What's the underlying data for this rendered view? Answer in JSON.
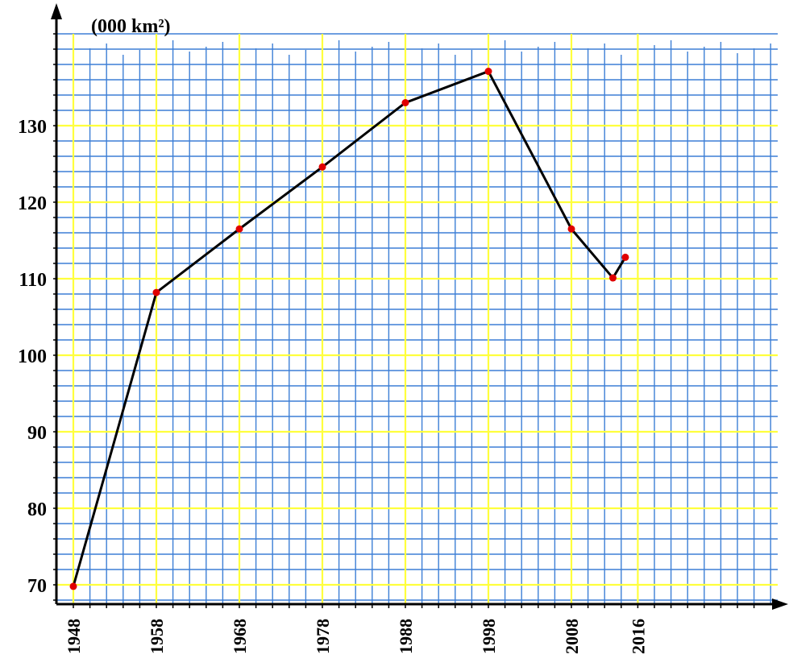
{
  "chart_data": {
    "type": "line",
    "title": "",
    "xlabel": "",
    "ylabel": "(000 km²)",
    "x": [
      1948,
      1958,
      1968,
      1978,
      1988,
      1998,
      2008,
      2013,
      2014.5
    ],
    "values": [
      69.8,
      108.2,
      116.5,
      124.6,
      133.0,
      137.1,
      116.5,
      110.1,
      112.8
    ],
    "x_tick_labels": [
      "1948",
      "1958",
      "1968",
      "1978",
      "1988",
      "1998",
      "2008",
      "2016"
    ],
    "y_tick_labels": [
      "70",
      "80",
      "90",
      "100",
      "110",
      "120",
      "130"
    ],
    "ylim": [
      68,
      142
    ],
    "xlim": [
      1946,
      2033
    ],
    "grid": true,
    "colors": {
      "line": "#000000",
      "marker": "#e00000",
      "minor_grid": "#3d7fd6",
      "major_grid": "#ffff3c",
      "axis": "#000000"
    }
  }
}
